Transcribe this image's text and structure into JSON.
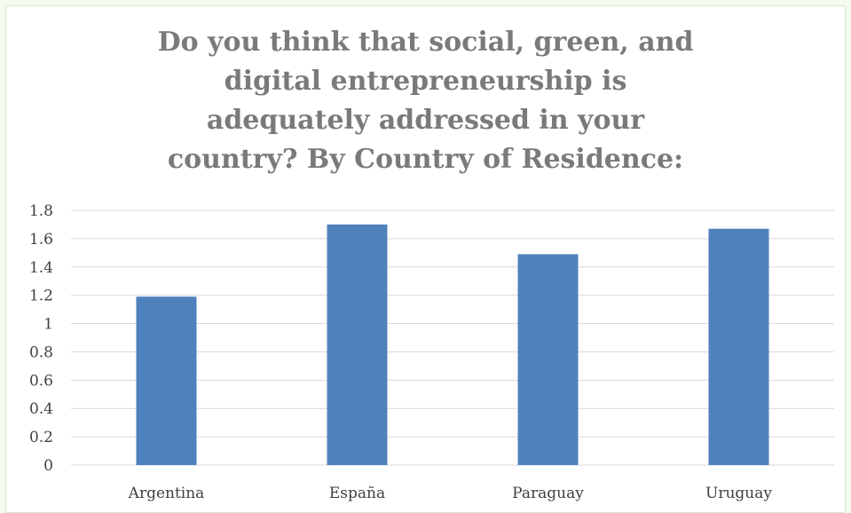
{
  "chart_data": {
    "type": "bar",
    "title": "Do you think that social, green, and\ndigital entrepreneurship is\nadequately addressed in your\ncountry? By Country of Residence:",
    "categories": [
      "Argentina",
      "España",
      "Paraguay",
      "Uruguay"
    ],
    "values": [
      1.19,
      1.7,
      1.49,
      1.67
    ],
    "ylim": [
      0,
      1.8
    ],
    "yticks": [
      "0",
      "0.2",
      "0.4",
      "0.6",
      "0.8",
      "1",
      "1.2",
      "1.4",
      "1.6",
      "1.8"
    ],
    "grid": true,
    "legend": "none",
    "bar_color": "#4f81bd",
    "grid_color": "#d9d9d9"
  }
}
